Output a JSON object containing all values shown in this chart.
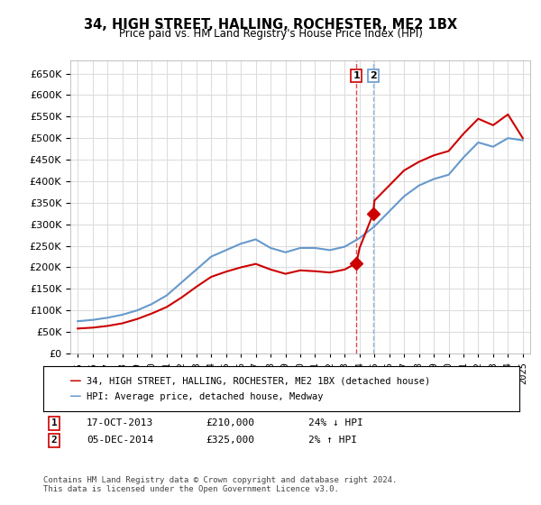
{
  "title": "34, HIGH STREET, HALLING, ROCHESTER, ME2 1BX",
  "subtitle": "Price paid vs. HM Land Registry's House Price Index (HPI)",
  "ylabel_ticks": [
    0,
    50000,
    100000,
    150000,
    200000,
    250000,
    300000,
    350000,
    400000,
    450000,
    500000,
    550000,
    600000,
    650000
  ],
  "ylim": [
    0,
    680000
  ],
  "xlim": [
    1994.5,
    2025.5
  ],
  "sale1_x": 2013.79,
  "sale1_y": 210000,
  "sale1_label": "1",
  "sale1_date": "17-OCT-2013",
  "sale1_price": "£210,000",
  "sale1_hpi": "24% ↓ HPI",
  "sale2_x": 2014.92,
  "sale2_y": 325000,
  "sale2_label": "2",
  "sale2_date": "05-DEC-2014",
  "sale2_price": "£325,000",
  "sale2_hpi": "2% ↑ HPI",
  "red_line_label": "34, HIGH STREET, HALLING, ROCHESTER, ME2 1BX (detached house)",
  "blue_line_label": "HPI: Average price, detached house, Medway",
  "footer": "Contains HM Land Registry data © Crown copyright and database right 2024.\nThis data is licensed under the Open Government Licence v3.0.",
  "red_color": "#cc0000",
  "blue_color": "#6699cc",
  "background_color": "#ffffff",
  "grid_color": "#dddddd",
  "hpi_x": [
    1995,
    1996,
    1997,
    1998,
    1999,
    2000,
    2001,
    2002,
    2003,
    2004,
    2005,
    2006,
    2007,
    2008,
    2009,
    2010,
    2011,
    2012,
    2013,
    2014,
    2015,
    2016,
    2017,
    2018,
    2019,
    2020,
    2021,
    2022,
    2023,
    2024,
    2025
  ],
  "hpi_y": [
    75000,
    78000,
    83000,
    90000,
    100000,
    115000,
    135000,
    165000,
    195000,
    225000,
    240000,
    255000,
    265000,
    245000,
    235000,
    245000,
    245000,
    240000,
    248000,
    268000,
    295000,
    330000,
    365000,
    390000,
    405000,
    415000,
    455000,
    490000,
    480000,
    500000,
    495000
  ],
  "red_x": [
    1995,
    1996,
    1997,
    1998,
    1999,
    2000,
    2001,
    2002,
    2003,
    2004,
    2005,
    2006,
    2007,
    2008,
    2009,
    2010,
    2011,
    2012,
    2013,
    2013.79,
    2014,
    2014.92,
    2015,
    2016,
    2017,
    2018,
    2019,
    2020,
    2021,
    2022,
    2023,
    2024,
    2025
  ],
  "red_y": [
    58000,
    60000,
    64000,
    70000,
    80000,
    93000,
    108000,
    130000,
    155000,
    178000,
    190000,
    200000,
    208000,
    195000,
    185000,
    193000,
    191000,
    188000,
    195000,
    210000,
    245000,
    325000,
    355000,
    390000,
    425000,
    445000,
    460000,
    470000,
    510000,
    545000,
    530000,
    555000,
    500000
  ]
}
